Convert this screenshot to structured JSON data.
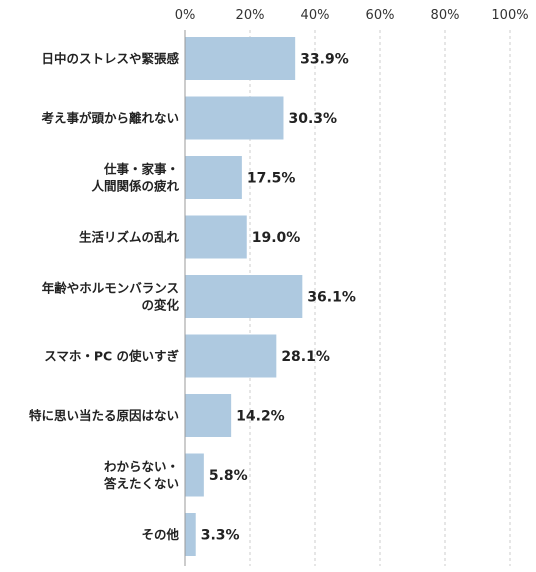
{
  "chart_data": {
    "type": "bar",
    "orientation": "horizontal",
    "categories": [
      [
        "日中のストレスや緊張感"
      ],
      [
        "考え事が頭から離れない"
      ],
      [
        "仕事・家事・",
        "人間関係の疲れ"
      ],
      [
        "生活リズムの乱れ"
      ],
      [
        "年齢やホルモンバランス",
        "の変化"
      ],
      [
        "スマホ・PC の使いすぎ"
      ],
      [
        "特に思い当たる原因はない"
      ],
      [
        "わからない・",
        "答えたくない"
      ],
      [
        "その他"
      ]
    ],
    "values": [
      33.9,
      30.3,
      17.5,
      19.0,
      36.1,
      28.1,
      14.2,
      5.8,
      3.3
    ],
    "value_labels": [
      "33.9%",
      "30.3%",
      "17.5%",
      "19.0%",
      "36.1%",
      "28.1%",
      "14.2%",
      "5.8%",
      "3.3%"
    ],
    "xticks": [
      "0%",
      "20%",
      "40%",
      "60%",
      "80%",
      "100%"
    ],
    "xlim": [
      0,
      100
    ],
    "grid": "vertical dashed",
    "axis_position": "top",
    "title": "",
    "xlabel": "",
    "ylabel": "",
    "colors": {
      "bar": "#aec9e0",
      "grid": "#cccccc",
      "axis": "#999999",
      "text": "#222222"
    }
  }
}
